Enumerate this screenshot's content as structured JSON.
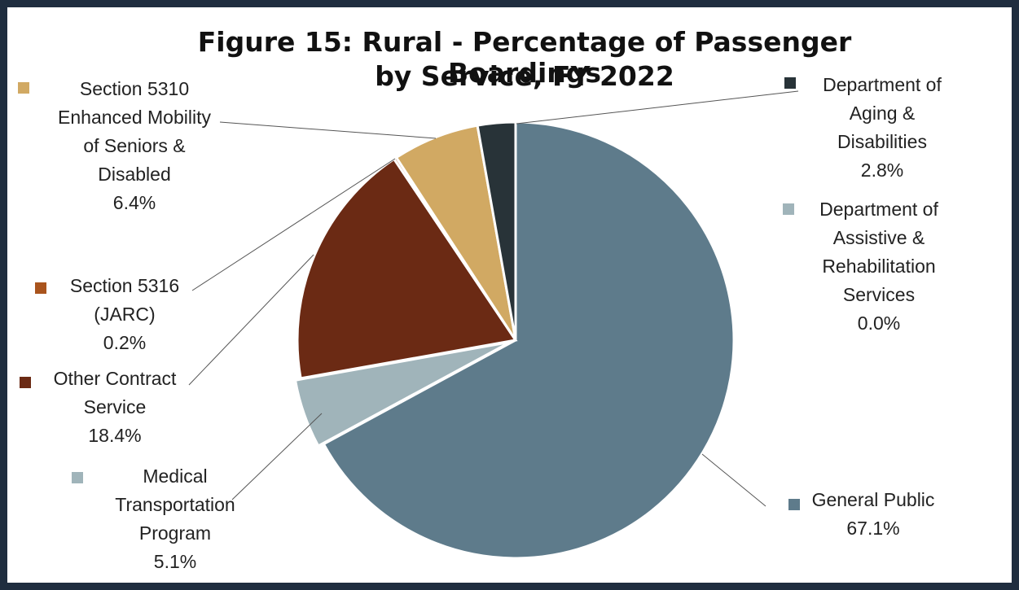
{
  "figure_title_line1": "Figure 15: Rural - Percentage of Passenger Boardings",
  "figure_title_line2": "by Service, FY 2022",
  "colors": {
    "frame": "#1f2d3f",
    "leader": "#555555"
  },
  "chart_data": {
    "type": "pie",
    "title": "Figure 15: Rural - Percentage of Passenger Boardings by Service, FY 2022",
    "unit": "%",
    "start_angle_deg": 0,
    "direction": "clockwise",
    "slices": [
      {
        "label_lines": [
          "General Public"
        ],
        "value": 67.1,
        "display": "67.1%",
        "color": "#5e7b8b"
      },
      {
        "label_lines": [
          "Medical",
          "Transportation",
          "Program"
        ],
        "value": 5.1,
        "display": "5.1%",
        "color": "#a0b4ba"
      },
      {
        "label_lines": [
          "Other Contract",
          "Service"
        ],
        "value": 18.4,
        "display": "18.4%",
        "color": "#6b2a14"
      },
      {
        "label_lines": [
          "Section 5316",
          "(JARC)"
        ],
        "value": 0.2,
        "display": "0.2%",
        "color": "#a9541d"
      },
      {
        "label_lines": [
          "Section 5310",
          "Enhanced Mobility",
          "of Seniors &",
          "Disabled"
        ],
        "value": 6.4,
        "display": "6.4%",
        "color": "#d1a963"
      },
      {
        "label_lines": [
          "Department of",
          "Assistive &",
          "Rehabilitation",
          "Services"
        ],
        "value": 0.0,
        "display": "0.0%",
        "color": "#a0b4ba"
      },
      {
        "label_lines": [
          "Department of",
          "Aging &",
          "Disabilities"
        ],
        "value": 2.8,
        "display": "2.8%",
        "color": "#283338"
      }
    ]
  }
}
